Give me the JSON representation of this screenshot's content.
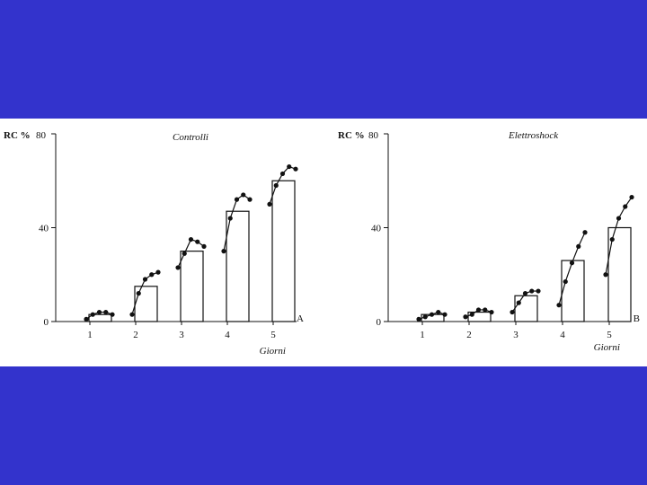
{
  "slide": {
    "background": "#3333cc",
    "figure_background": "#ffffff"
  },
  "chart_data": [
    {
      "type": "bar",
      "title": "Controlli",
      "ylabel": "RC %",
      "xlabel": "Giorni",
      "panel_label": "A",
      "categories": [
        "1",
        "2",
        "3",
        "4",
        "5"
      ],
      "values": [
        3,
        15,
        30,
        47,
        60
      ],
      "ylim": [
        0,
        80
      ],
      "yticks": [
        0,
        40,
        80
      ],
      "grid": false,
      "within_day_points": [
        [
          1,
          3,
          4,
          4,
          3
        ],
        [
          3,
          12,
          18,
          20,
          21
        ],
        [
          23,
          29,
          35,
          34,
          32
        ],
        [
          30,
          44,
          52,
          54,
          52
        ],
        [
          50,
          58,
          63,
          66,
          65
        ]
      ]
    },
    {
      "type": "bar",
      "title": "Elettroshock",
      "ylabel": "RC %",
      "xlabel": "Giorni",
      "panel_label": "B",
      "categories": [
        "1",
        "2",
        "3",
        "4",
        "5"
      ],
      "values": [
        3,
        4,
        11,
        26,
        40
      ],
      "ylim": [
        0,
        80
      ],
      "yticks": [
        0,
        40,
        80
      ],
      "grid": false,
      "within_day_points": [
        [
          1,
          2,
          3,
          4,
          3
        ],
        [
          2,
          3,
          5,
          5,
          4
        ],
        [
          4,
          8,
          12,
          13,
          13
        ],
        [
          7,
          17,
          25,
          32,
          38
        ],
        [
          20,
          35,
          44,
          49,
          53
        ]
      ]
    }
  ]
}
